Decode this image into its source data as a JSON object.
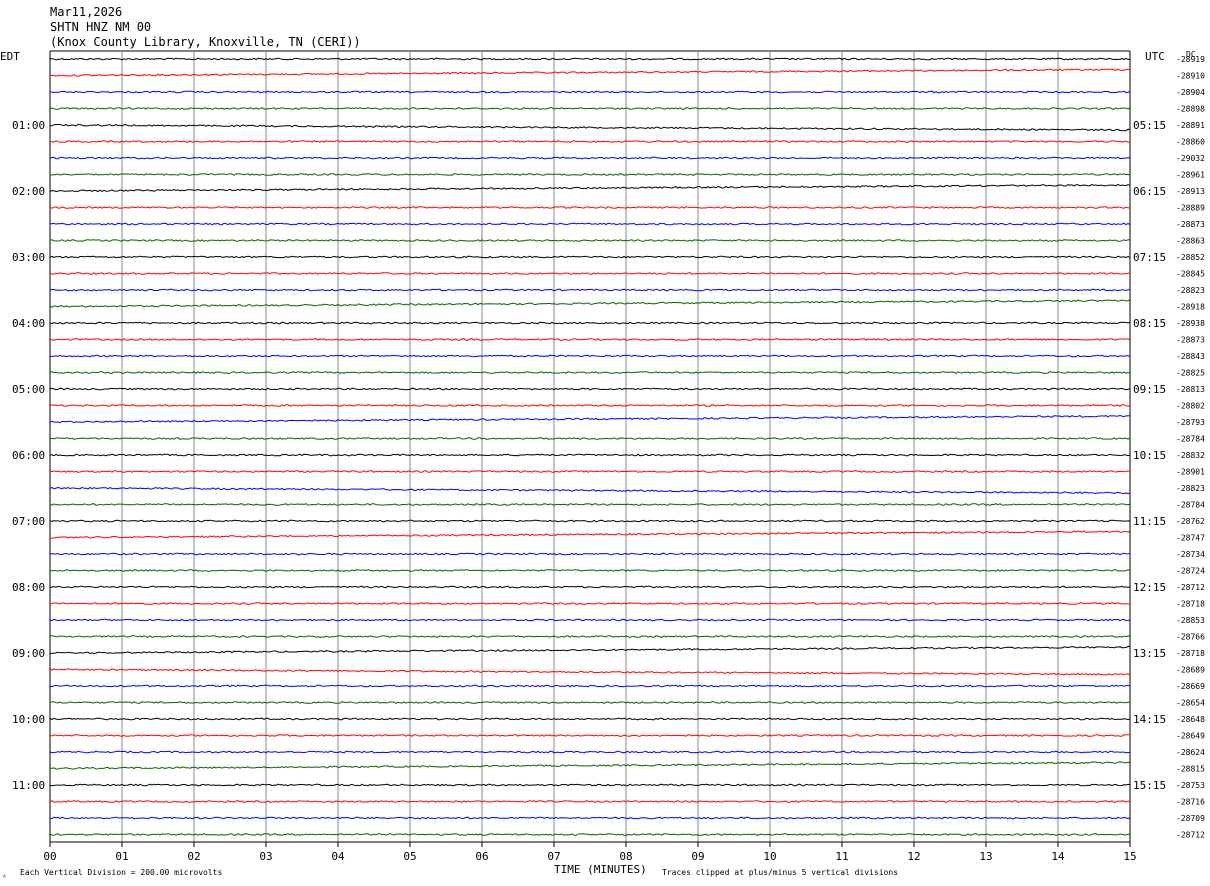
{
  "header": {
    "date": "Mar11,2026",
    "station": "SHTN HNZ NM 00",
    "location": "(Knox County Library, Knoxville, TN (CERI))"
  },
  "axes": {
    "left_tz": "EDT",
    "right_tz": "UTC",
    "dc_label": "DC",
    "x_label": "TIME (MINUTES)",
    "x_ticks": [
      "00",
      "01",
      "02",
      "03",
      "04",
      "05",
      "06",
      "07",
      "08",
      "09",
      "10",
      "11",
      "12",
      "13",
      "14",
      "15"
    ],
    "left_hours": [
      "01:00",
      "02:00",
      "03:00",
      "04:00",
      "05:00",
      "06:00",
      "07:00",
      "08:00",
      "09:00",
      "10:00",
      "11:00"
    ],
    "right_hours": [
      "05:15",
      "06:15",
      "07:15",
      "08:15",
      "09:15",
      "10:15",
      "11:15",
      "12:15",
      "13:15",
      "14:15",
      "15:15"
    ],
    "scale_note": "Each Vertical Division =  200.00 microvolts",
    "clip_note": "Traces clipped at plus/minus 5 vertical divisions",
    "corner_mark": "ᴬ"
  },
  "colors": [
    "#000000",
    "#ff0000",
    "#0000ff",
    "#006600"
  ],
  "chart_data": {
    "type": "line",
    "title": "",
    "xlabel": "TIME (MINUTES)",
    "xlim": [
      0,
      15
    ],
    "trace_count": 48,
    "dc_offsets": [
      -28919,
      -28910,
      -28904,
      -28898,
      -28891,
      -28860,
      -29032,
      -28961,
      -28913,
      -28889,
      -28873,
      -28863,
      -28852,
      -28845,
      -28823,
      -28918,
      -28938,
      -28873,
      -28843,
      -28825,
      -28813,
      -28802,
      -28793,
      -28784,
      -28832,
      -28901,
      -28823,
      -28784,
      -28762,
      -28747,
      -28734,
      -28724,
      -28712,
      -28718,
      -28853,
      -28766,
      -28718,
      -28689,
      -28669,
      -28654,
      -28648,
      -28649,
      -28624,
      -28815,
      -28753,
      -28716,
      -28709,
      -28712
    ]
  }
}
